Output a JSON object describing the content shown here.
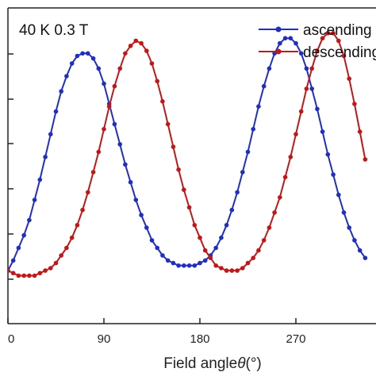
{
  "chart_data": {
    "type": "line",
    "annotation": "40 K 0.3 T",
    "xlabel": "Field angle θ (°)",
    "xlabel_text": "Field angle",
    "xlabel_symbol": "θ",
    "xlabel_unit": "(°)",
    "ylabel": "",
    "x_ticks": [
      "0",
      "90",
      "180",
      "270"
    ],
    "xlim": [
      0,
      335
    ],
    "ylim": [
      -0.15,
      1.1
    ],
    "grid": false,
    "legend_position": "top-right",
    "x": [
      0,
      5,
      10,
      15,
      20,
      25,
      30,
      35,
      40,
      45,
      50,
      55,
      60,
      65,
      70,
      75,
      80,
      85,
      90,
      95,
      100,
      105,
      110,
      115,
      120,
      125,
      130,
      135,
      140,
      145,
      150,
      155,
      160,
      165,
      170,
      175,
      180,
      185,
      190,
      195,
      200,
      205,
      210,
      215,
      220,
      225,
      230,
      235,
      240,
      245,
      250,
      255,
      260,
      265,
      270,
      275,
      280,
      285,
      290,
      295,
      300,
      305,
      310,
      315,
      320,
      325,
      330,
      335
    ],
    "series": [
      {
        "name": "ascending",
        "color": "#1f2fbf",
        "values": [
          0.06,
          0.1,
          0.15,
          0.2,
          0.26,
          0.34,
          0.42,
          0.51,
          0.6,
          0.69,
          0.77,
          0.83,
          0.88,
          0.91,
          0.92,
          0.92,
          0.9,
          0.86,
          0.8,
          0.72,
          0.64,
          0.56,
          0.48,
          0.41,
          0.34,
          0.28,
          0.23,
          0.18,
          0.15,
          0.12,
          0.1,
          0.09,
          0.08,
          0.08,
          0.08,
          0.08,
          0.09,
          0.1,
          0.12,
          0.15,
          0.19,
          0.24,
          0.3,
          0.37,
          0.45,
          0.53,
          0.62,
          0.71,
          0.79,
          0.86,
          0.92,
          0.96,
          0.98,
          0.98,
          0.96,
          0.92,
          0.86,
          0.78,
          0.7,
          0.61,
          0.52,
          0.44,
          0.36,
          0.29,
          0.23,
          0.18,
          0.14,
          0.11
        ]
      },
      {
        "name": "descending",
        "color": "#c01818",
        "values": [
          0.06,
          0.05,
          0.04,
          0.04,
          0.04,
          0.04,
          0.05,
          0.06,
          0.07,
          0.09,
          0.12,
          0.15,
          0.19,
          0.24,
          0.3,
          0.37,
          0.45,
          0.53,
          0.62,
          0.71,
          0.79,
          0.86,
          0.92,
          0.95,
          0.97,
          0.96,
          0.93,
          0.88,
          0.81,
          0.73,
          0.64,
          0.55,
          0.46,
          0.38,
          0.31,
          0.24,
          0.19,
          0.14,
          0.11,
          0.08,
          0.07,
          0.06,
          0.06,
          0.06,
          0.07,
          0.09,
          0.11,
          0.14,
          0.18,
          0.23,
          0.29,
          0.35,
          0.43,
          0.51,
          0.6,
          0.69,
          0.78,
          0.86,
          0.93,
          0.98,
          1.0,
          1.0,
          0.97,
          0.91,
          0.82,
          0.72,
          0.61,
          0.5
        ]
      }
    ]
  }
}
